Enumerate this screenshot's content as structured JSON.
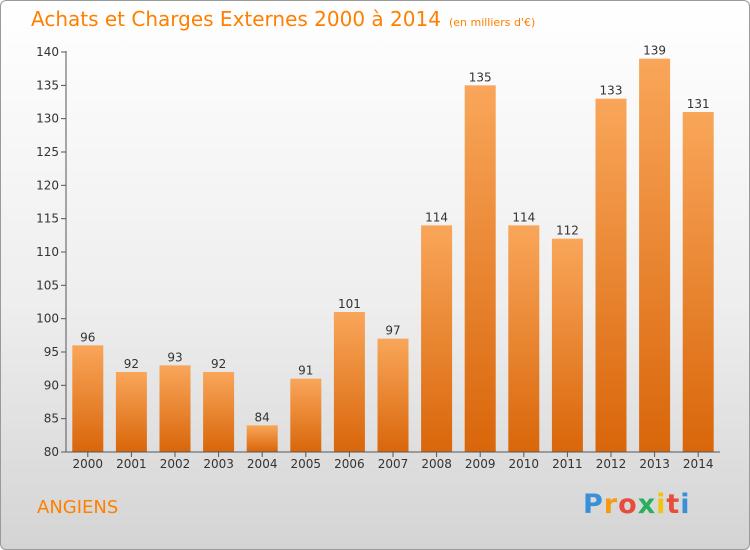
{
  "header": {
    "title": "Achats et Charges Externes 2000 à 2014",
    "unit": "(en milliers d'€)"
  },
  "commune": "ANGIENS",
  "logo": {
    "letters": [
      "P",
      "r",
      "o",
      "x",
      "i",
      "t",
      "i"
    ],
    "colors": [
      "#3a8fd9",
      "#f39c12",
      "#e74c3c",
      "#27ae60",
      "#f1c40f",
      "#e74c3c",
      "#3a8fd9"
    ]
  },
  "colors": {
    "title": "#ff7f00",
    "bar_top": "#f9a65a",
    "bar_bottom": "#d9660a"
  },
  "chart_data": {
    "type": "bar",
    "categories": [
      "2000",
      "2001",
      "2002",
      "2003",
      "2004",
      "2005",
      "2006",
      "2007",
      "2008",
      "2009",
      "2010",
      "2011",
      "2012",
      "2013",
      "2014"
    ],
    "values": [
      96,
      92,
      93,
      92,
      84,
      91,
      101,
      97,
      114,
      135,
      114,
      112,
      133,
      139,
      131
    ],
    "title": "Achats et Charges Externes 2000 à 2014",
    "subtitle": "(en milliers d'€)",
    "xlabel": "",
    "ylabel": "",
    "ylim": [
      80,
      140
    ],
    "yticks": [
      80,
      85,
      90,
      95,
      100,
      105,
      110,
      115,
      120,
      125,
      130,
      135,
      140
    ],
    "grid": false,
    "legend": "none"
  }
}
